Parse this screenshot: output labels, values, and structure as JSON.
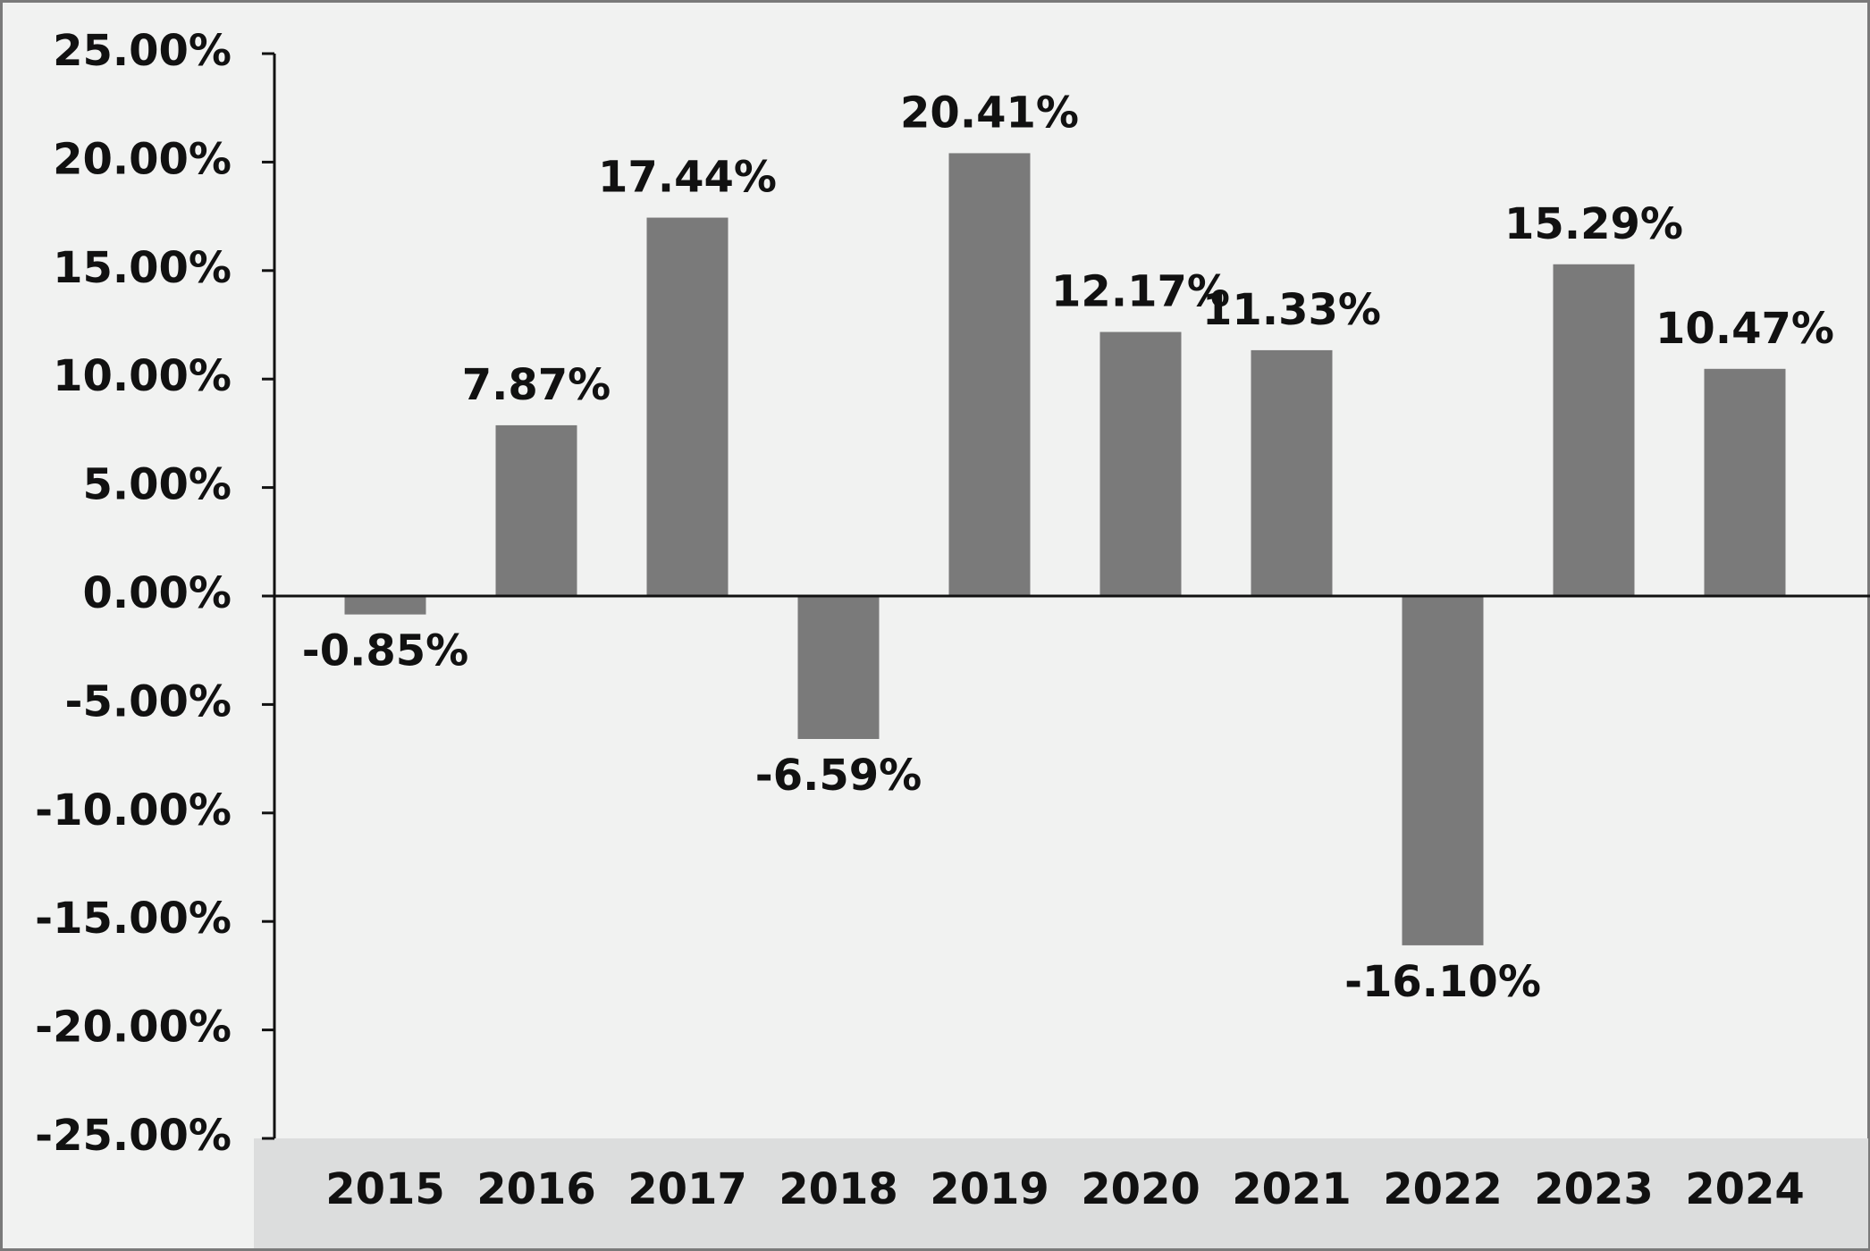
{
  "chart_data": {
    "type": "bar",
    "categories": [
      "2015",
      "2016",
      "2017",
      "2018",
      "2019",
      "2020",
      "2021",
      "2022",
      "2023",
      "2024"
    ],
    "values": [
      -0.85,
      7.87,
      17.44,
      -6.59,
      20.41,
      12.17,
      11.33,
      -16.1,
      15.29,
      10.47
    ],
    "value_labels": [
      "-0.85%",
      "7.87%",
      "17.44%",
      "-6.59%",
      "20.41%",
      "12.17%",
      "11.33%",
      "-16.10%",
      "15.29%",
      "10.47%"
    ],
    "color": "#7a7a7a",
    "ylim": [
      -25,
      25
    ],
    "yticks": [
      {
        "value": 25,
        "label": "25.00%"
      },
      {
        "value": 20,
        "label": "20.00%"
      },
      {
        "value": 15,
        "label": "15.00%"
      },
      {
        "value": 10,
        "label": "10.00%"
      },
      {
        "value": 5,
        "label": "5.00%"
      },
      {
        "value": 0,
        "label": "0.00%"
      },
      {
        "value": -5,
        "label": "-5.00%"
      },
      {
        "value": -10,
        "label": "-10.00%"
      },
      {
        "value": -15,
        "label": "-15.00%"
      },
      {
        "value": -20,
        "label": "-20.00%"
      },
      {
        "value": -25,
        "label": "-25.00%"
      }
    ],
    "grid": false
  }
}
